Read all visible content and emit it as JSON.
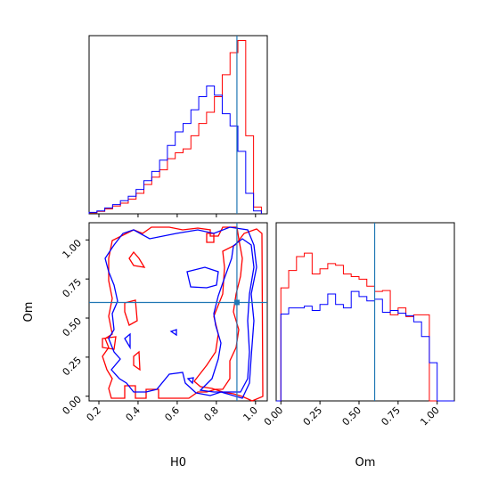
{
  "chart_data": [
    {
      "type": "histogram",
      "panel": "H0 marginal",
      "xlim": [
        0.15,
        1.06
      ],
      "truth_line": 0.905,
      "bin_edges": [
        0.15,
        0.19,
        0.23,
        0.27,
        0.31,
        0.35,
        0.39,
        0.43,
        0.47,
        0.51,
        0.55,
        0.59,
        0.63,
        0.67,
        0.71,
        0.75,
        0.79,
        0.83,
        0.87,
        0.91,
        0.95,
        0.99,
        1.03
      ],
      "series": [
        {
          "color": "#ff0000",
          "values": [
            0.2,
            0.5,
            1.0,
            1.6,
            2.2,
            3.0,
            4.2,
            6.0,
            7.5,
            9.0,
            11.3,
            12.5,
            13.3,
            16.0,
            18.5,
            20.8,
            24.0,
            28.5,
            33.0,
            35.5,
            16.0,
            1.4
          ]
        },
        {
          "color": "#0000ff",
          "values": [
            0.3,
            0.6,
            1.2,
            1.9,
            2.7,
            3.6,
            5.0,
            6.8,
            8.7,
            11.0,
            14.0,
            16.8,
            18.5,
            21.3,
            24.0,
            26.2,
            24.3,
            20.5,
            18.0,
            12.8,
            4.2,
            0.6
          ]
        }
      ]
    },
    {
      "type": "contour",
      "panel": "H0 vs Om joint",
      "xlabel": "H0",
      "ylabel": "Om",
      "xlim": [
        0.15,
        1.06
      ],
      "ylim": [
        -0.03,
        1.11
      ],
      "xticks": [
        "0.2",
        "0.4",
        "0.6",
        "0.8",
        "1.0"
      ],
      "yticks": [
        "0.00",
        "0.25",
        "0.50",
        "0.75",
        "1.00"
      ],
      "truth": [
        0.905,
        0.6
      ],
      "series": [
        {
          "color": "#ff0000",
          "levels": 2
        },
        {
          "color": "#0000ff",
          "levels": 2
        }
      ]
    },
    {
      "type": "histogram",
      "panel": "Om marginal",
      "xlabel": "Om",
      "xlim": [
        -0.03,
        1.11
      ],
      "xticks": [
        "0.00",
        "0.25",
        "0.50",
        "0.75",
        "1.00"
      ],
      "truth_line": 0.6,
      "bin_edges": [
        0.0,
        0.05,
        0.1,
        0.15,
        0.2,
        0.25,
        0.3,
        0.35,
        0.4,
        0.45,
        0.5,
        0.55,
        0.6,
        0.65,
        0.7,
        0.75,
        0.8,
        0.85,
        0.9,
        0.95,
        1.0
      ],
      "series": [
        {
          "color": "#ff0000",
          "values": [
            13.0,
            15.0,
            16.6,
            17.0,
            14.6,
            15.2,
            15.8,
            15.6,
            14.6,
            14.3,
            14.0,
            13.2,
            12.6,
            12.7,
            9.9,
            10.7,
            9.7,
            9.9,
            9.9,
            0.0
          ]
        },
        {
          "color": "#0000ff",
          "values": [
            10.0,
            10.7,
            10.7,
            10.9,
            10.4,
            11.1,
            12.3,
            11.1,
            10.7,
            12.6,
            12.0,
            11.5,
            11.7,
            10.2,
            10.4,
            10.1,
            9.8,
            9.1,
            7.4,
            4.4
          ]
        }
      ]
    }
  ]
}
